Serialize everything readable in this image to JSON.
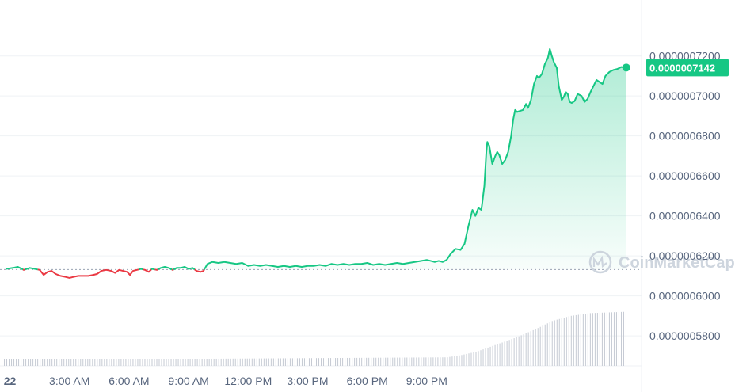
{
  "chart_data": {
    "type": "line",
    "title": "",
    "xlabel": "",
    "ylabel": "",
    "x_ticks": [
      "22",
      "3:00 AM",
      "6:00 AM",
      "9:00 AM",
      "12:00 PM",
      "3:00 PM",
      "6:00 PM",
      "9:00 PM"
    ],
    "y_ticks": [
      "0.0000007200",
      "0.0000007000",
      "0.0000006800",
      "0.0000006600",
      "0.0000006400",
      "0.0000006200",
      "0.0000006000",
      "0.0000005800"
    ],
    "ylim": [
      5.65e-07,
      7.48e-07
    ],
    "baseline": 6.132e-07,
    "current_price": 7.142e-07,
    "current_price_label": "0.0000007142",
    "colors": {
      "up": "#16c784",
      "down": "#ea3943",
      "area_top": "#16c784",
      "baseline_dash": "#9aa3b2",
      "grid": "#eff2f5",
      "volume": "#c5cad3",
      "text": "#58667e"
    },
    "series": [
      {
        "values": [
          [
            -0.2,
            6.135e-07
          ],
          [
            0.15,
            6.14e-07
          ],
          [
            0.4,
            6.145e-07
          ],
          [
            0.7,
            6.13e-07
          ],
          [
            1.0,
            6.14e-07
          ],
          [
            1.25,
            6.135e-07
          ],
          [
            1.5,
            6.13e-07
          ],
          [
            1.7,
            6.105e-07
          ],
          [
            1.9,
            6.12e-07
          ],
          [
            2.1,
            6.125e-07
          ],
          [
            2.3,
            6.11e-07
          ],
          [
            2.55,
            6.1e-07
          ],
          [
            2.8,
            6.095e-07
          ],
          [
            3.0,
            6.09e-07
          ],
          [
            3.2,
            6.095e-07
          ],
          [
            3.45,
            6.1e-07
          ],
          [
            3.7,
            6.1e-07
          ],
          [
            3.95,
            6.1e-07
          ],
          [
            4.2,
            6.105e-07
          ],
          [
            4.4,
            6.11e-07
          ],
          [
            4.6,
            6.125e-07
          ],
          [
            4.85,
            6.13e-07
          ],
          [
            5.1,
            6.125e-07
          ],
          [
            5.3,
            6.115e-07
          ],
          [
            5.5,
            6.13e-07
          ],
          [
            5.7,
            6.125e-07
          ],
          [
            5.9,
            6.12e-07
          ],
          [
            6.05,
            6.105e-07
          ],
          [
            6.2,
            6.125e-07
          ],
          [
            6.4,
            6.13e-07
          ],
          [
            6.6,
            6.135e-07
          ],
          [
            6.8,
            6.13e-07
          ],
          [
            7.0,
            6.12e-07
          ],
          [
            7.15,
            6.135e-07
          ],
          [
            7.4,
            6.13e-07
          ],
          [
            7.6,
            6.14e-07
          ],
          [
            7.8,
            6.145e-07
          ],
          [
            8.0,
            6.14e-07
          ],
          [
            8.2,
            6.13e-07
          ],
          [
            8.4,
            6.14e-07
          ],
          [
            8.6,
            6.14e-07
          ],
          [
            8.8,
            6.145e-07
          ],
          [
            9.0,
            6.135e-07
          ],
          [
            9.2,
            6.14e-07
          ],
          [
            9.4,
            6.125e-07
          ],
          [
            9.6,
            6.12e-07
          ],
          [
            9.75,
            6.125e-07
          ],
          [
            9.95,
            6.16e-07
          ],
          [
            10.2,
            6.17e-07
          ],
          [
            10.5,
            6.165e-07
          ],
          [
            10.8,
            6.17e-07
          ],
          [
            11.1,
            6.165e-07
          ],
          [
            11.4,
            6.16e-07
          ],
          [
            11.7,
            6.165e-07
          ],
          [
            12.0,
            6.15e-07
          ],
          [
            12.3,
            6.155e-07
          ],
          [
            12.6,
            6.15e-07
          ],
          [
            12.9,
            6.155e-07
          ],
          [
            13.2,
            6.15e-07
          ],
          [
            13.5,
            6.145e-07
          ],
          [
            13.8,
            6.15e-07
          ],
          [
            14.1,
            6.145e-07
          ],
          [
            14.4,
            6.15e-07
          ],
          [
            14.7,
            6.145e-07
          ],
          [
            15.0,
            6.15e-07
          ],
          [
            15.3,
            6.15e-07
          ],
          [
            15.6,
            6.155e-07
          ],
          [
            15.9,
            6.15e-07
          ],
          [
            16.2,
            6.16e-07
          ],
          [
            16.5,
            6.155e-07
          ],
          [
            16.8,
            6.16e-07
          ],
          [
            17.1,
            6.155e-07
          ],
          [
            17.4,
            6.16e-07
          ],
          [
            17.7,
            6.16e-07
          ],
          [
            18.0,
            6.165e-07
          ],
          [
            18.3,
            6.155e-07
          ],
          [
            18.6,
            6.16e-07
          ],
          [
            18.9,
            6.155e-07
          ],
          [
            19.2,
            6.16e-07
          ],
          [
            19.5,
            6.165e-07
          ],
          [
            19.8,
            6.16e-07
          ],
          [
            20.1,
            6.165e-07
          ],
          [
            20.4,
            6.17e-07
          ],
          [
            20.7,
            6.175e-07
          ],
          [
            21.0,
            6.18e-07
          ],
          [
            21.2,
            6.175e-07
          ],
          [
            21.4,
            6.17e-07
          ],
          [
            21.6,
            6.175e-07
          ],
          [
            21.8,
            6.17e-07
          ],
          [
            22.0,
            6.18e-07
          ],
          [
            22.2,
            6.21e-07
          ],
          [
            22.45,
            6.235e-07
          ],
          [
            22.7,
            6.23e-07
          ],
          [
            22.9,
            6.26e-07
          ],
          [
            23.1,
            6.35e-07
          ],
          [
            23.3,
            6.43e-07
          ],
          [
            23.45,
            6.4e-07
          ],
          [
            23.6,
            6.44e-07
          ],
          [
            23.75,
            6.43e-07
          ],
          [
            23.9,
            6.55e-07
          ],
          [
            24.0,
            6.72e-07
          ],
          [
            24.05,
            6.77e-07
          ],
          [
            24.15,
            6.75e-07
          ],
          [
            24.3,
            6.66e-07
          ],
          [
            24.45,
            6.7e-07
          ],
          [
            24.55,
            6.72e-07
          ],
          [
            24.65,
            6.705e-07
          ],
          [
            24.8,
            6.66e-07
          ],
          [
            24.95,
            6.68e-07
          ],
          [
            25.1,
            6.72e-07
          ],
          [
            25.25,
            6.8e-07
          ],
          [
            25.35,
            6.88e-07
          ],
          [
            25.45,
            6.93e-07
          ],
          [
            25.55,
            6.92e-07
          ],
          [
            25.7,
            6.925e-07
          ],
          [
            25.85,
            6.93e-07
          ],
          [
            26.0,
            6.96e-07
          ],
          [
            26.1,
            6.94e-07
          ],
          [
            26.25,
            6.98e-07
          ],
          [
            26.4,
            7.06e-07
          ],
          [
            26.55,
            7.1e-07
          ],
          [
            26.65,
            7.09e-07
          ],
          [
            26.8,
            7.11e-07
          ],
          [
            26.95,
            7.16e-07
          ],
          [
            27.1,
            7.19e-07
          ],
          [
            27.2,
            7.235e-07
          ],
          [
            27.3,
            7.2e-07
          ],
          [
            27.4,
            7.17e-07
          ],
          [
            27.55,
            7.14e-07
          ],
          [
            27.65,
            7.05e-07
          ],
          [
            27.8,
            6.98e-07
          ],
          [
            27.9,
            6.995e-07
          ],
          [
            28.0,
            7.02e-07
          ],
          [
            28.1,
            7.01e-07
          ],
          [
            28.2,
            6.97e-07
          ],
          [
            28.3,
            6.965e-07
          ],
          [
            28.45,
            6.975e-07
          ],
          [
            28.6,
            7.01e-07
          ],
          [
            28.8,
            7e-07
          ],
          [
            28.95,
            6.97e-07
          ],
          [
            29.1,
            6.985e-07
          ],
          [
            29.25,
            7.02e-07
          ],
          [
            29.4,
            7.05e-07
          ],
          [
            29.55,
            7.08e-07
          ],
          [
            29.7,
            7.07e-07
          ],
          [
            29.85,
            7.06e-07
          ],
          [
            30.0,
            7.1e-07
          ],
          [
            30.2,
            7.12e-07
          ],
          [
            30.4,
            7.13e-07
          ],
          [
            30.6,
            7.135e-07
          ],
          [
            30.8,
            7.145e-07
          ],
          [
            31.05,
            7.142e-07
          ]
        ]
      }
    ],
    "volume": [
      [
        -0.2,
        0.1
      ],
      [
        10.0,
        0.1
      ],
      [
        22.0,
        0.12
      ],
      [
        22.7,
        0.15
      ],
      [
        23.5,
        0.2
      ],
      [
        24.5,
        0.3
      ],
      [
        25.5,
        0.4
      ],
      [
        26.5,
        0.52
      ],
      [
        27.3,
        0.63
      ],
      [
        28.2,
        0.7
      ],
      [
        29.2,
        0.74
      ],
      [
        31.05,
        0.76
      ]
    ]
  },
  "watermark": {
    "text": "CoinMarketCap"
  }
}
